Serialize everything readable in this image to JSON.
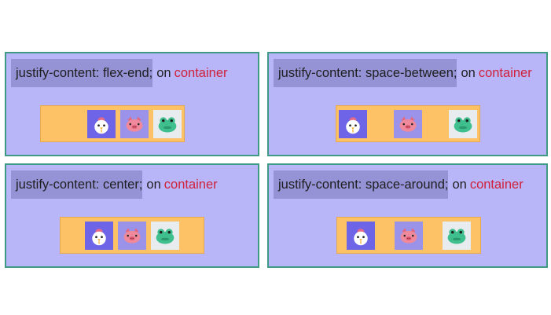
{
  "panels": [
    {
      "code": "justify-content: flex-end;",
      "on": "on",
      "target": "container"
    },
    {
      "code": "justify-content: space-between;",
      "on": "on",
      "target": "container"
    },
    {
      "code": "justify-content: center;",
      "on": "on",
      "target": "container"
    },
    {
      "code": "justify-content: space-around;",
      "on": "on",
      "target": "container"
    }
  ],
  "items": [
    "chick-icon",
    "pig-icon",
    "frog-icon"
  ],
  "colors": {
    "panel_background": "#b8b6f8",
    "panel_border": "#3e9a84",
    "code_highlight": "#9593d6",
    "container_background": "#fdc265",
    "keyword_red": "#d0213c",
    "chick_box": "#6d64e8",
    "pig_box": "#9a93e9",
    "frog_box": "#e9ecef"
  }
}
